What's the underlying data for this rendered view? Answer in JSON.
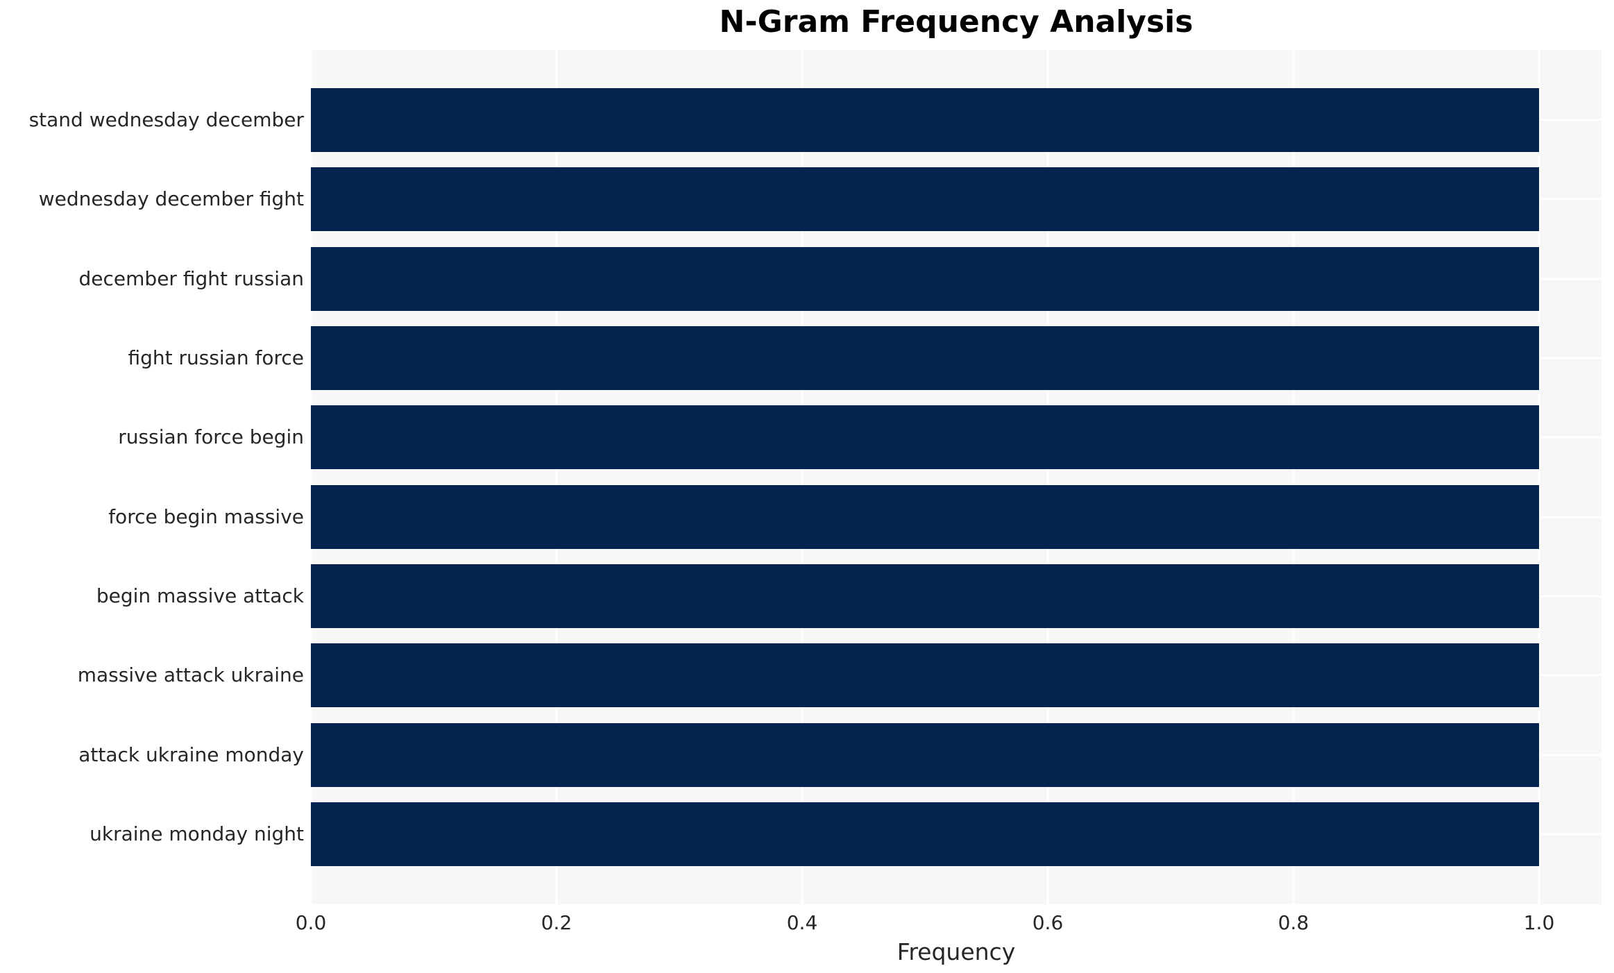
{
  "chart_data": {
    "type": "bar",
    "orientation": "horizontal",
    "title": "N-Gram Frequency Analysis",
    "xlabel": "Frequency",
    "ylabel": "",
    "categories": [
      "stand wednesday december",
      "wednesday december fight",
      "december fight russian",
      "fight russian force",
      "russian force begin",
      "force begin massive",
      "begin massive attack",
      "massive attack ukraine",
      "attack ukraine monday",
      "ukraine monday night"
    ],
    "values": [
      1.0,
      1.0,
      1.0,
      1.0,
      1.0,
      1.0,
      1.0,
      1.0,
      1.0,
      1.0
    ],
    "xtick_values": [
      0.0,
      0.2,
      0.4,
      0.6,
      0.8,
      1.0
    ],
    "xtick_labels": [
      "0.0",
      "0.2",
      "0.4",
      "0.6",
      "0.8",
      "1.0"
    ],
    "xlim": [
      0.0,
      1.0508
    ],
    "grid": true,
    "legend": "none",
    "colors": {
      "bar": "#02244e",
      "plot_background": "#f7f7f7",
      "figure_background": "#ffffff",
      "gridline": "#ffffff",
      "tick_text": "#262626",
      "title_text": "#000000"
    }
  }
}
